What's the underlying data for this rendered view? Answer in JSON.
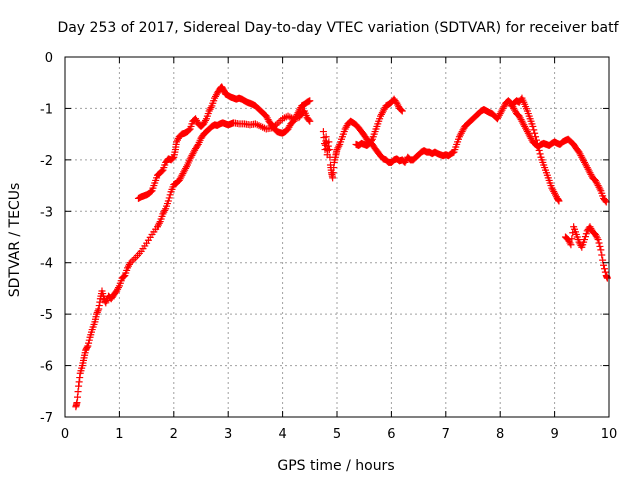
{
  "chart_data": {
    "type": "scatter",
    "title": "Day 253 of 2017, Sidereal Day-to-day VTEC variation (SDTVAR) for receiver batf",
    "xlabel": "GPS time / hours",
    "ylabel": "SDTVAR / TECUs",
    "xlim": [
      0,
      10
    ],
    "ylim": [
      -7,
      0
    ],
    "x_ticks": [
      "0",
      "1",
      "2",
      "3",
      "4",
      "5",
      "6",
      "7",
      "8",
      "9",
      "10"
    ],
    "y_ticks": [
      "0",
      "-1",
      "-2",
      "-3",
      "-4",
      "-5",
      "-6",
      "-7"
    ],
    "grid": true,
    "marker": "+",
    "color": "#ff0000",
    "series": [
      {
        "points": [
          [
            0.2,
            -6.8
          ],
          [
            0.22,
            -6.72
          ],
          [
            0.25,
            -6.4
          ],
          [
            0.28,
            -6.15
          ],
          [
            0.32,
            -6.0
          ],
          [
            0.35,
            -5.85
          ],
          [
            0.38,
            -5.7
          ],
          [
            0.42,
            -5.62
          ],
          [
            0.46,
            -5.45
          ],
          [
            0.5,
            -5.3
          ],
          [
            0.55,
            -5.15
          ],
          [
            0.58,
            -5.0
          ],
          [
            0.62,
            -4.9
          ],
          [
            0.65,
            -4.7
          ],
          [
            0.68,
            -4.55
          ],
          [
            0.72,
            -4.7
          ],
          [
            0.75,
            -4.78
          ],
          [
            0.8,
            -4.65
          ],
          [
            0.85,
            -4.7
          ],
          [
            0.9,
            -4.62
          ],
          [
            0.95,
            -4.55
          ],
          [
            1.0,
            -4.45
          ],
          [
            1.05,
            -4.3
          ],
          [
            1.1,
            -4.25
          ],
          [
            1.15,
            -4.1
          ],
          [
            1.2,
            -4.0
          ],
          [
            1.3,
            -3.9
          ],
          [
            1.4,
            -3.78
          ],
          [
            1.5,
            -3.62
          ],
          [
            1.6,
            -3.45
          ],
          [
            1.7,
            -3.3
          ],
          [
            1.75,
            -3.2
          ],
          [
            1.8,
            -3.05
          ],
          [
            1.85,
            -2.95
          ],
          [
            1.9,
            -2.8
          ],
          [
            1.95,
            -2.62
          ],
          [
            2.0,
            -2.48
          ],
          [
            2.05,
            -2.45
          ],
          [
            2.1,
            -2.4
          ],
          [
            2.15,
            -2.3
          ],
          [
            2.2,
            -2.2
          ],
          [
            2.25,
            -2.1
          ],
          [
            2.3,
            -1.98
          ],
          [
            2.35,
            -1.88
          ],
          [
            2.4,
            -1.78
          ],
          [
            2.45,
            -1.7
          ],
          [
            2.5,
            -1.58
          ],
          [
            2.55,
            -1.5
          ],
          [
            2.6,
            -1.45
          ],
          [
            2.65,
            -1.4
          ],
          [
            2.7,
            -1.35
          ],
          [
            2.75,
            -1.32
          ],
          [
            2.8,
            -1.33
          ],
          [
            2.85,
            -1.3
          ],
          [
            2.9,
            -1.28
          ],
          [
            2.95,
            -1.3
          ],
          [
            3.0,
            -1.32
          ],
          [
            3.05,
            -1.3
          ],
          [
            3.1,
            -1.28
          ],
          [
            3.2,
            -1.3
          ],
          [
            3.3,
            -1.3
          ],
          [
            3.4,
            -1.32
          ],
          [
            3.5,
            -1.3
          ],
          [
            3.6,
            -1.35
          ],
          [
            3.7,
            -1.4
          ],
          [
            3.8,
            -1.38
          ],
          [
            3.9,
            -1.3
          ],
          [
            4.0,
            -1.2
          ],
          [
            4.1,
            -1.15
          ],
          [
            4.2,
            -1.2
          ],
          [
            4.3,
            -1.18
          ],
          [
            4.35,
            -1.1
          ],
          [
            4.4,
            -1.05
          ],
          [
            4.45,
            -1.18
          ],
          [
            4.5,
            -1.25
          ]
        ]
      },
      {
        "points": [
          [
            1.35,
            -2.75
          ],
          [
            1.4,
            -2.72
          ],
          [
            1.45,
            -2.7
          ],
          [
            1.5,
            -2.68
          ],
          [
            1.55,
            -2.65
          ],
          [
            1.6,
            -2.6
          ],
          [
            1.65,
            -2.45
          ],
          [
            1.7,
            -2.3
          ],
          [
            1.75,
            -2.25
          ],
          [
            1.8,
            -2.2
          ],
          [
            1.85,
            -2.05
          ],
          [
            1.9,
            -1.98
          ],
          [
            1.95,
            -2.0
          ],
          [
            2.0,
            -1.95
          ],
          [
            2.03,
            -1.8
          ],
          [
            2.05,
            -1.65
          ],
          [
            2.1,
            -1.55
          ],
          [
            2.15,
            -1.5
          ],
          [
            2.2,
            -1.48
          ],
          [
            2.25,
            -1.45
          ],
          [
            2.3,
            -1.4
          ],
          [
            2.35,
            -1.25
          ],
          [
            2.4,
            -1.2
          ],
          [
            2.45,
            -1.3
          ],
          [
            2.5,
            -1.35
          ],
          [
            2.55,
            -1.3
          ],
          [
            2.6,
            -1.2
          ],
          [
            2.65,
            -1.05
          ],
          [
            2.7,
            -0.95
          ],
          [
            2.75,
            -0.8
          ],
          [
            2.8,
            -0.7
          ],
          [
            2.85,
            -0.62
          ],
          [
            2.88,
            -0.58
          ],
          [
            2.92,
            -0.65
          ],
          [
            2.95,
            -0.72
          ],
          [
            3.0,
            -0.75
          ],
          [
            3.05,
            -0.78
          ],
          [
            3.1,
            -0.8
          ],
          [
            3.15,
            -0.82
          ],
          [
            3.2,
            -0.8
          ],
          [
            3.25,
            -0.82
          ],
          [
            3.3,
            -0.85
          ],
          [
            3.35,
            -0.88
          ],
          [
            3.4,
            -0.9
          ],
          [
            3.45,
            -0.92
          ],
          [
            3.5,
            -0.95
          ],
          [
            3.55,
            -1.0
          ],
          [
            3.6,
            -1.05
          ],
          [
            3.65,
            -1.1
          ],
          [
            3.7,
            -1.15
          ],
          [
            3.75,
            -1.25
          ],
          [
            3.8,
            -1.32
          ],
          [
            3.85,
            -1.4
          ],
          [
            3.9,
            -1.45
          ],
          [
            3.95,
            -1.47
          ],
          [
            4.0,
            -1.48
          ],
          [
            4.05,
            -1.45
          ],
          [
            4.1,
            -1.4
          ],
          [
            4.15,
            -1.3
          ],
          [
            4.2,
            -1.25
          ],
          [
            4.25,
            -1.15
          ],
          [
            4.3,
            -1.05
          ],
          [
            4.35,
            -0.95
          ],
          [
            4.4,
            -0.92
          ],
          [
            4.45,
            -0.88
          ],
          [
            4.5,
            -0.85
          ]
        ]
      },
      {
        "points": [
          [
            4.75,
            -1.45
          ],
          [
            4.78,
            -1.8
          ],
          [
            4.8,
            -1.55
          ],
          [
            4.82,
            -1.9
          ],
          [
            4.85,
            -1.65
          ],
          [
            4.88,
            -2.1
          ],
          [
            4.9,
            -2.25
          ],
          [
            4.92,
            -2.35
          ],
          [
            4.95,
            -2.05
          ],
          [
            4.98,
            -1.9
          ],
          [
            5.0,
            -1.8
          ],
          [
            5.05,
            -1.7
          ],
          [
            5.1,
            -1.55
          ],
          [
            5.15,
            -1.4
          ],
          [
            5.2,
            -1.3
          ],
          [
            5.25,
            -1.25
          ],
          [
            5.3,
            -1.28
          ],
          [
            5.35,
            -1.32
          ],
          [
            5.4,
            -1.38
          ],
          [
            5.45,
            -1.45
          ],
          [
            5.5,
            -1.52
          ],
          [
            5.55,
            -1.6
          ],
          [
            5.6,
            -1.65
          ],
          [
            5.65,
            -1.7
          ],
          [
            5.7,
            -1.78
          ],
          [
            5.75,
            -1.85
          ],
          [
            5.8,
            -1.92
          ],
          [
            5.85,
            -1.98
          ],
          [
            5.9,
            -2.0
          ],
          [
            5.95,
            -2.05
          ],
          [
            6.0,
            -2.05
          ],
          [
            6.05,
            -2.0
          ],
          [
            6.1,
            -1.98
          ],
          [
            6.15,
            -2.02
          ],
          [
            6.2,
            -2.0
          ],
          [
            6.25,
            -2.05
          ],
          [
            6.3,
            -1.95
          ],
          [
            6.35,
            -2.0
          ],
          [
            6.4,
            -2.0
          ],
          [
            6.45,
            -1.95
          ],
          [
            6.5,
            -1.9
          ],
          [
            6.55,
            -1.85
          ],
          [
            6.6,
            -1.82
          ],
          [
            6.65,
            -1.85
          ],
          [
            6.7,
            -1.85
          ],
          [
            6.75,
            -1.88
          ],
          [
            6.8,
            -1.85
          ],
          [
            6.85,
            -1.88
          ],
          [
            6.9,
            -1.9
          ],
          [
            6.95,
            -1.92
          ],
          [
            7.0,
            -1.9
          ],
          [
            7.05,
            -1.92
          ],
          [
            7.1,
            -1.88
          ],
          [
            7.15,
            -1.85
          ],
          [
            7.2,
            -1.7
          ],
          [
            7.25,
            -1.55
          ],
          [
            7.3,
            -1.45
          ],
          [
            7.35,
            -1.35
          ],
          [
            7.4,
            -1.3
          ],
          [
            7.45,
            -1.25
          ],
          [
            7.5,
            -1.2
          ],
          [
            7.55,
            -1.15
          ],
          [
            7.6,
            -1.1
          ],
          [
            7.65,
            -1.05
          ],
          [
            7.7,
            -1.02
          ],
          [
            7.75,
            -1.05
          ],
          [
            7.8,
            -1.08
          ],
          [
            7.85,
            -1.1
          ],
          [
            7.9,
            -1.15
          ],
          [
            7.95,
            -1.2
          ],
          [
            8.0,
            -1.1
          ],
          [
            8.05,
            -1.0
          ],
          [
            8.1,
            -0.9
          ],
          [
            8.15,
            -0.85
          ],
          [
            8.2,
            -0.9
          ],
          [
            8.25,
            -1.0
          ],
          [
            8.3,
            -1.1
          ],
          [
            8.35,
            -1.15
          ],
          [
            8.4,
            -1.25
          ],
          [
            8.45,
            -1.35
          ],
          [
            8.5,
            -1.45
          ],
          [
            8.55,
            -1.55
          ],
          [
            8.6,
            -1.65
          ],
          [
            8.65,
            -1.7
          ],
          [
            8.7,
            -1.75
          ],
          [
            8.75,
            -1.7
          ],
          [
            8.8,
            -1.68
          ],
          [
            8.85,
            -1.7
          ],
          [
            8.9,
            -1.72
          ],
          [
            8.95,
            -1.68
          ],
          [
            9.0,
            -1.65
          ],
          [
            9.05,
            -1.68
          ],
          [
            9.1,
            -1.7
          ],
          [
            9.15,
            -1.65
          ],
          [
            9.2,
            -1.62
          ],
          [
            9.25,
            -1.6
          ],
          [
            9.3,
            -1.65
          ],
          [
            9.35,
            -1.7
          ],
          [
            9.4,
            -1.78
          ],
          [
            9.45,
            -1.85
          ],
          [
            9.5,
            -1.95
          ],
          [
            9.55,
            -2.05
          ],
          [
            9.6,
            -2.15
          ],
          [
            9.65,
            -2.25
          ],
          [
            9.7,
            -2.35
          ],
          [
            9.75,
            -2.4
          ],
          [
            9.8,
            -2.5
          ],
          [
            9.85,
            -2.6
          ],
          [
            9.9,
            -2.75
          ],
          [
            9.95,
            -2.82
          ]
        ]
      },
      {
        "points": [
          [
            5.35,
            -1.7
          ],
          [
            5.4,
            -1.72
          ],
          [
            5.45,
            -1.68
          ],
          [
            5.5,
            -1.7
          ],
          [
            5.55,
            -1.72
          ],
          [
            5.6,
            -1.68
          ],
          [
            5.65,
            -1.6
          ],
          [
            5.7,
            -1.45
          ],
          [
            5.75,
            -1.3
          ],
          [
            5.8,
            -1.15
          ],
          [
            5.85,
            -1.05
          ],
          [
            5.9,
            -0.95
          ],
          [
            5.95,
            -0.92
          ],
          [
            6.0,
            -0.88
          ],
          [
            6.05,
            -0.82
          ],
          [
            6.1,
            -0.9
          ],
          [
            6.15,
            -1.0
          ],
          [
            6.2,
            -1.05
          ]
        ]
      },
      {
        "points": [
          [
            8.2,
            -0.95
          ],
          [
            8.25,
            -0.9
          ],
          [
            8.3,
            -0.85
          ],
          [
            8.35,
            -0.88
          ],
          [
            8.4,
            -0.8
          ],
          [
            8.45,
            -0.92
          ],
          [
            8.5,
            -1.05
          ],
          [
            8.55,
            -1.2
          ],
          [
            8.6,
            -1.35
          ],
          [
            8.65,
            -1.55
          ],
          [
            8.7,
            -1.75
          ],
          [
            8.75,
            -1.95
          ],
          [
            8.8,
            -2.1
          ],
          [
            8.85,
            -2.25
          ],
          [
            8.9,
            -2.4
          ],
          [
            8.95,
            -2.55
          ],
          [
            9.0,
            -2.65
          ],
          [
            9.05,
            -2.75
          ],
          [
            9.08,
            -2.8
          ]
        ]
      },
      {
        "points": [
          [
            9.2,
            -3.5
          ],
          [
            9.25,
            -3.55
          ],
          [
            9.3,
            -3.65
          ],
          [
            9.35,
            -3.3
          ],
          [
            9.4,
            -3.45
          ],
          [
            9.45,
            -3.6
          ],
          [
            9.5,
            -3.7
          ],
          [
            9.55,
            -3.55
          ],
          [
            9.6,
            -3.38
          ],
          [
            9.65,
            -3.3
          ],
          [
            9.7,
            -3.4
          ],
          [
            9.75,
            -3.45
          ],
          [
            9.8,
            -3.55
          ],
          [
            9.85,
            -3.75
          ],
          [
            9.9,
            -4.05
          ],
          [
            9.95,
            -4.25
          ],
          [
            9.97,
            -4.3
          ]
        ]
      }
    ]
  }
}
